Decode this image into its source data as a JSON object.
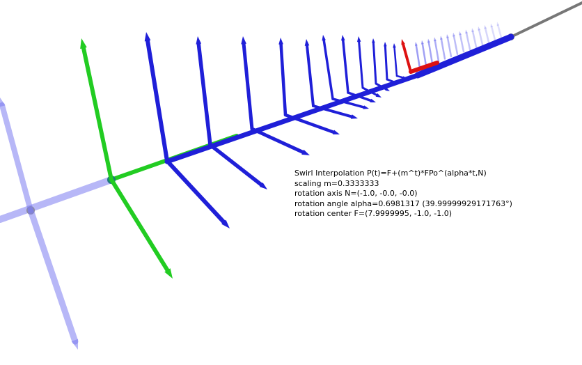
{
  "info": {
    "title": "Swirl Interpolation P(t)=F+(m^t)*FPo^(alpha*t,N)",
    "scaling": "scaling m=0.3333333",
    "axis": "rotation axis N=(-1.0, -0.0, -0.0)",
    "angle": "rotation angle alpha=0.6981317 (39.99999929171763°)",
    "center": "rotation center F=(7.9999995, -1.0, -1.0)"
  },
  "colors": {
    "background": "#ffffff",
    "frame": "#1f1fd8",
    "ghost": "#7b7bf0",
    "start": "#22cc22",
    "highlight": "#dd1111",
    "axis_line": "#777777"
  }
}
